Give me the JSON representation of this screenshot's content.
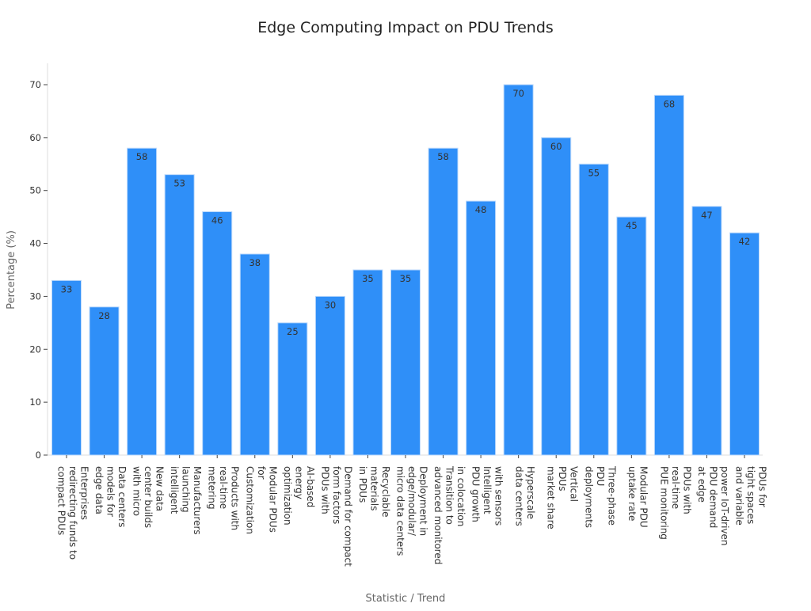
{
  "chart_data": {
    "type": "bar",
    "title": "Edge Computing Impact on PDU Trends",
    "xlabel": "Statistic / Trend",
    "ylabel": "Percentage (%)",
    "ylim": [
      0,
      73
    ],
    "yticks": [
      0,
      10,
      20,
      30,
      40,
      50,
      60,
      70
    ],
    "grid": false,
    "bar_color": "#2f8ff8",
    "categories": [
      [
        "Enterprises",
        "redirecting",
        "funds to",
        "compact PDUs"
      ],
      [
        "Data centers",
        "models for",
        "edge data"
      ],
      [
        "New data",
        "center builds",
        "with micro"
      ],
      [
        "Manufacturers",
        "launching",
        "intelligent"
      ],
      [
        "Products with",
        "real-time",
        "metering"
      ],
      [
        "Modular PDUs",
        "for",
        "Customization"
      ],
      [
        "AI-based",
        "energy",
        "optimization"
      ],
      [
        "Demand for",
        "compact",
        "form factors",
        "PDUs with"
      ],
      [
        "Recyclable",
        "materials",
        "in PDUs"
      ],
      [
        "Deployment in",
        "edge/modular/",
        "micro data",
        "centers"
      ],
      [
        "in colocation",
        "Transition to",
        "advanced",
        "monitored"
      ],
      [
        "with sensors",
        "Intelligent",
        "PDU growth"
      ],
      [
        "Hyperscale",
        "data centers"
      ],
      [
        "Vertical",
        "PDUs",
        "market share"
      ],
      [
        "Three-phase",
        "PDU",
        "deployments"
      ],
      [
        "Modular PDU",
        "uptake rate"
      ],
      [
        "PDUs with",
        "real-time",
        "PUE monitoring"
      ],
      [
        "power",
        "IoT-driven",
        "PDU demand",
        "at edge"
      ],
      [
        "PDUs for",
        "tight spaces",
        "and variable"
      ]
    ],
    "values": [
      33,
      28,
      58,
      53,
      46,
      38,
      25,
      30,
      35,
      35,
      58,
      48,
      70,
      60,
      55,
      45,
      68,
      47,
      42
    ]
  }
}
